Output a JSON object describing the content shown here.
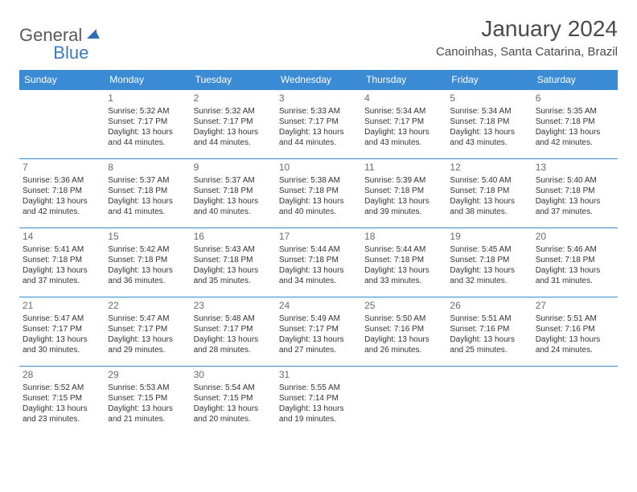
{
  "logo": {
    "part1": "General",
    "part2": "Blue"
  },
  "title": "January 2024",
  "location": "Canoinhas, Santa Catarina, Brazil",
  "colors": {
    "header_bg": "#3b8bd4",
    "header_text": "#ffffff",
    "cell_border": "#3b8bd4",
    "daynum": "#6a6a6a",
    "body_text": "#333333",
    "logo_gray": "#5a5a5a",
    "logo_blue": "#3b7bc4"
  },
  "weekdays": [
    "Sunday",
    "Monday",
    "Tuesday",
    "Wednesday",
    "Thursday",
    "Friday",
    "Saturday"
  ],
  "weeks": [
    [
      null,
      {
        "n": "1",
        "sr": "5:32 AM",
        "ss": "7:17 PM",
        "dh": "13",
        "dm": "44"
      },
      {
        "n": "2",
        "sr": "5:32 AM",
        "ss": "7:17 PM",
        "dh": "13",
        "dm": "44"
      },
      {
        "n": "3",
        "sr": "5:33 AM",
        "ss": "7:17 PM",
        "dh": "13",
        "dm": "44"
      },
      {
        "n": "4",
        "sr": "5:34 AM",
        "ss": "7:17 PM",
        "dh": "13",
        "dm": "43"
      },
      {
        "n": "5",
        "sr": "5:34 AM",
        "ss": "7:18 PM",
        "dh": "13",
        "dm": "43"
      },
      {
        "n": "6",
        "sr": "5:35 AM",
        "ss": "7:18 PM",
        "dh": "13",
        "dm": "42"
      }
    ],
    [
      {
        "n": "7",
        "sr": "5:36 AM",
        "ss": "7:18 PM",
        "dh": "13",
        "dm": "42"
      },
      {
        "n": "8",
        "sr": "5:37 AM",
        "ss": "7:18 PM",
        "dh": "13",
        "dm": "41"
      },
      {
        "n": "9",
        "sr": "5:37 AM",
        "ss": "7:18 PM",
        "dh": "13",
        "dm": "40"
      },
      {
        "n": "10",
        "sr": "5:38 AM",
        "ss": "7:18 PM",
        "dh": "13",
        "dm": "40"
      },
      {
        "n": "11",
        "sr": "5:39 AM",
        "ss": "7:18 PM",
        "dh": "13",
        "dm": "39"
      },
      {
        "n": "12",
        "sr": "5:40 AM",
        "ss": "7:18 PM",
        "dh": "13",
        "dm": "38"
      },
      {
        "n": "13",
        "sr": "5:40 AM",
        "ss": "7:18 PM",
        "dh": "13",
        "dm": "37"
      }
    ],
    [
      {
        "n": "14",
        "sr": "5:41 AM",
        "ss": "7:18 PM",
        "dh": "13",
        "dm": "37"
      },
      {
        "n": "15",
        "sr": "5:42 AM",
        "ss": "7:18 PM",
        "dh": "13",
        "dm": "36"
      },
      {
        "n": "16",
        "sr": "5:43 AM",
        "ss": "7:18 PM",
        "dh": "13",
        "dm": "35"
      },
      {
        "n": "17",
        "sr": "5:44 AM",
        "ss": "7:18 PM",
        "dh": "13",
        "dm": "34"
      },
      {
        "n": "18",
        "sr": "5:44 AM",
        "ss": "7:18 PM",
        "dh": "13",
        "dm": "33"
      },
      {
        "n": "19",
        "sr": "5:45 AM",
        "ss": "7:18 PM",
        "dh": "13",
        "dm": "32"
      },
      {
        "n": "20",
        "sr": "5:46 AM",
        "ss": "7:18 PM",
        "dh": "13",
        "dm": "31"
      }
    ],
    [
      {
        "n": "21",
        "sr": "5:47 AM",
        "ss": "7:17 PM",
        "dh": "13",
        "dm": "30"
      },
      {
        "n": "22",
        "sr": "5:47 AM",
        "ss": "7:17 PM",
        "dh": "13",
        "dm": "29"
      },
      {
        "n": "23",
        "sr": "5:48 AM",
        "ss": "7:17 PM",
        "dh": "13",
        "dm": "28"
      },
      {
        "n": "24",
        "sr": "5:49 AM",
        "ss": "7:17 PM",
        "dh": "13",
        "dm": "27"
      },
      {
        "n": "25",
        "sr": "5:50 AM",
        "ss": "7:16 PM",
        "dh": "13",
        "dm": "26"
      },
      {
        "n": "26",
        "sr": "5:51 AM",
        "ss": "7:16 PM",
        "dh": "13",
        "dm": "25"
      },
      {
        "n": "27",
        "sr": "5:51 AM",
        "ss": "7:16 PM",
        "dh": "13",
        "dm": "24"
      }
    ],
    [
      {
        "n": "28",
        "sr": "5:52 AM",
        "ss": "7:15 PM",
        "dh": "13",
        "dm": "23"
      },
      {
        "n": "29",
        "sr": "5:53 AM",
        "ss": "7:15 PM",
        "dh": "13",
        "dm": "21"
      },
      {
        "n": "30",
        "sr": "5:54 AM",
        "ss": "7:15 PM",
        "dh": "13",
        "dm": "20"
      },
      {
        "n": "31",
        "sr": "5:55 AM",
        "ss": "7:14 PM",
        "dh": "13",
        "dm": "19"
      },
      null,
      null,
      null
    ]
  ],
  "labels": {
    "sunrise": "Sunrise:",
    "sunset": "Sunset:",
    "daylight": "Daylight:",
    "hours": "hours",
    "and": "and",
    "minutes": "minutes."
  }
}
